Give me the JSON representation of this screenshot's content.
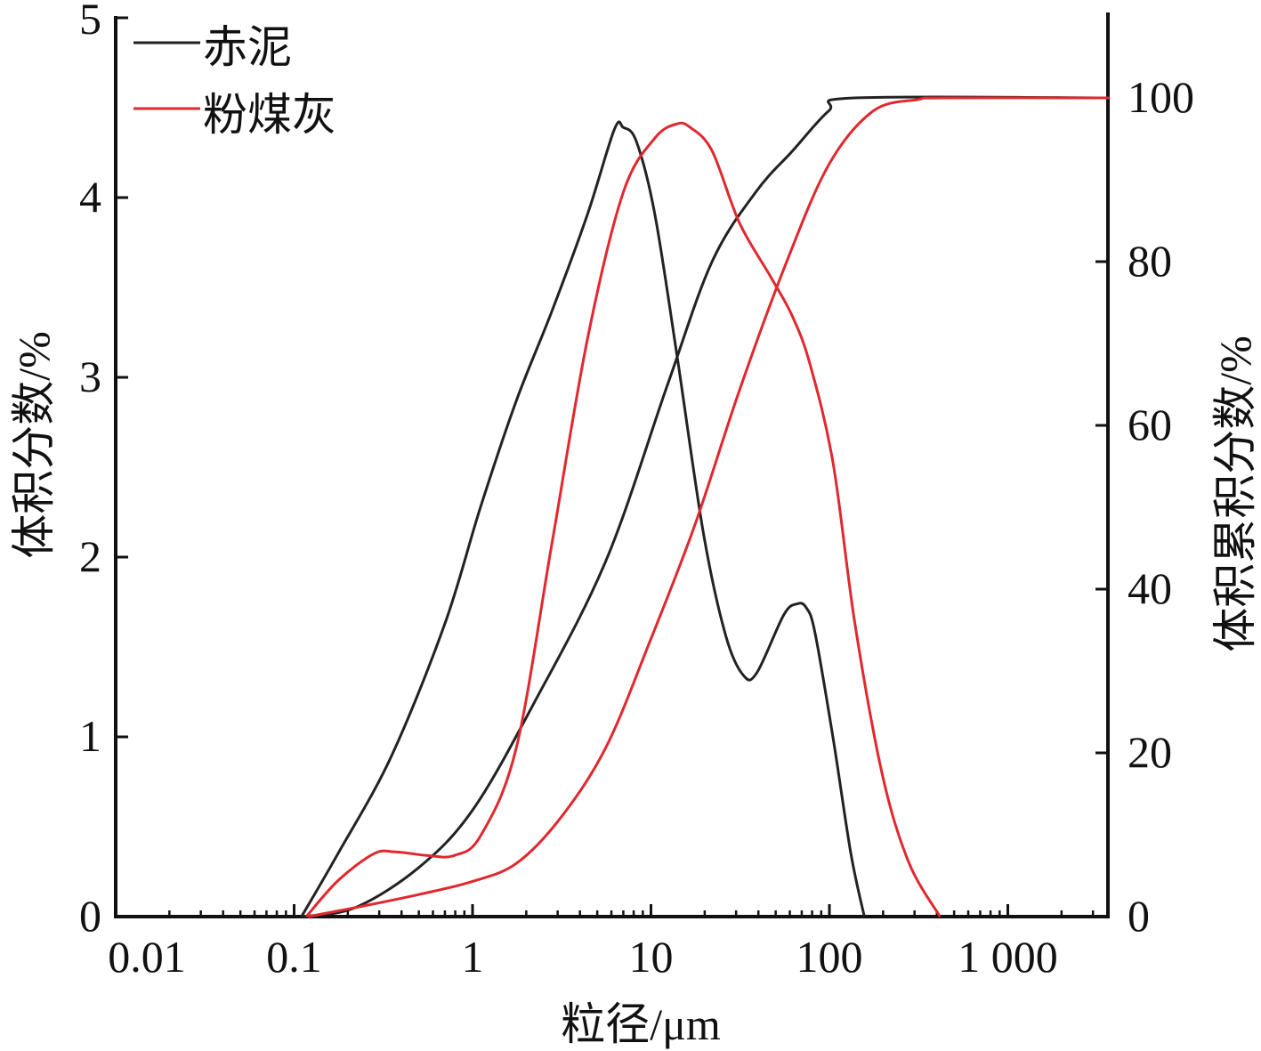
{
  "chart_data": {
    "type": "line",
    "xlabel": "粒径/μm",
    "ylabel": "体积分数/%",
    "y2label": "体积累积分数/%",
    "xscale": "log",
    "xlim": [
      0.01,
      3700
    ],
    "ylim": [
      0,
      5
    ],
    "y2lim": [
      0,
      110
    ],
    "xticks": [
      0.01,
      0.1,
      1,
      10,
      100,
      1000
    ],
    "xtick_labels": [
      "0.01",
      "0.1",
      "1",
      "10",
      "100",
      "1 000"
    ],
    "yticks": [
      0,
      1,
      2,
      3,
      4,
      5
    ],
    "ytick_labels": [
      "0",
      "1",
      "2",
      "3",
      "4",
      "5"
    ],
    "y2ticks": [
      0,
      20,
      40,
      60,
      80,
      100
    ],
    "y2tick_labels": [
      "0",
      "20",
      "40",
      "60",
      "80",
      "100"
    ],
    "legend_position": "top-left",
    "colors": {
      "red_mud": "#222222",
      "fly_ash": "#e0282e"
    },
    "series": [
      {
        "name": "赤泥",
        "kind": "distribution",
        "axis": "left",
        "color": "#222222",
        "x": [
          0.11,
          0.176,
          0.35,
          0.7,
          1.11,
          1.76,
          2.79,
          4.42,
          6.24,
          7.0,
          8.3,
          10.5,
          14.0,
          19.7,
          26.3,
          33.1,
          39.4,
          55.6,
          66,
          74,
          83,
          105,
          132,
          157
        ],
        "y": [
          0,
          0.35,
          0.89,
          1.63,
          2.28,
          2.87,
          3.37,
          3.91,
          4.38,
          4.39,
          4.31,
          3.91,
          3.12,
          2.13,
          1.56,
          1.34,
          1.36,
          1.68,
          1.74,
          1.72,
          1.58,
          0.99,
          0.35,
          0
        ]
      },
      {
        "name": "赤泥",
        "kind": "cumulative",
        "axis": "right",
        "color": "#222222",
        "x": [
          0.11,
          0.22,
          0.5,
          1.0,
          2.2,
          5.6,
          12.4,
          22,
          39,
          62,
          99,
          139,
          3700
        ],
        "y": [
          0,
          1.1,
          6,
          13,
          26,
          43.5,
          65,
          80,
          88.6,
          93.5,
          98.4,
          100,
          100
        ]
      },
      {
        "name": "粉煤灰",
        "kind": "distribution",
        "axis": "left",
        "color": "#e0282e",
        "x": [
          0.117,
          0.176,
          0.28,
          0.37,
          0.56,
          0.79,
          1.11,
          1.76,
          2.79,
          4.42,
          7.0,
          10.5,
          14,
          16.6,
          22,
          31.3,
          46.8,
          62,
          78,
          105,
          139,
          198,
          279,
          417
        ],
        "y": [
          0,
          0.2,
          0.35,
          0.36,
          0.34,
          0.34,
          0.45,
          0.94,
          2.08,
          3.22,
          4.03,
          4.33,
          4.41,
          4.39,
          4.26,
          3.86,
          3.56,
          3.34,
          3.07,
          2.52,
          1.63,
          0.79,
          0.3,
          0
        ]
      },
      {
        "name": "粉煤灰",
        "kind": "cumulative",
        "axis": "right",
        "color": "#e0282e",
        "x": [
          0.12,
          0.22,
          0.5,
          1.0,
          1.76,
          3.1,
          5.6,
          9.9,
          17.6,
          31,
          56,
          99,
          176,
          313,
          440,
          3700
        ],
        "y": [
          0,
          1.1,
          2.7,
          4.3,
          6.5,
          12,
          20.7,
          33.7,
          47.8,
          64,
          79.3,
          91.8,
          98.4,
          99.8,
          100,
          100
        ]
      }
    ],
    "legend": [
      {
        "label": "赤泥",
        "color": "#222222"
      },
      {
        "label": "粉煤灰",
        "color": "#e0282e"
      }
    ]
  }
}
